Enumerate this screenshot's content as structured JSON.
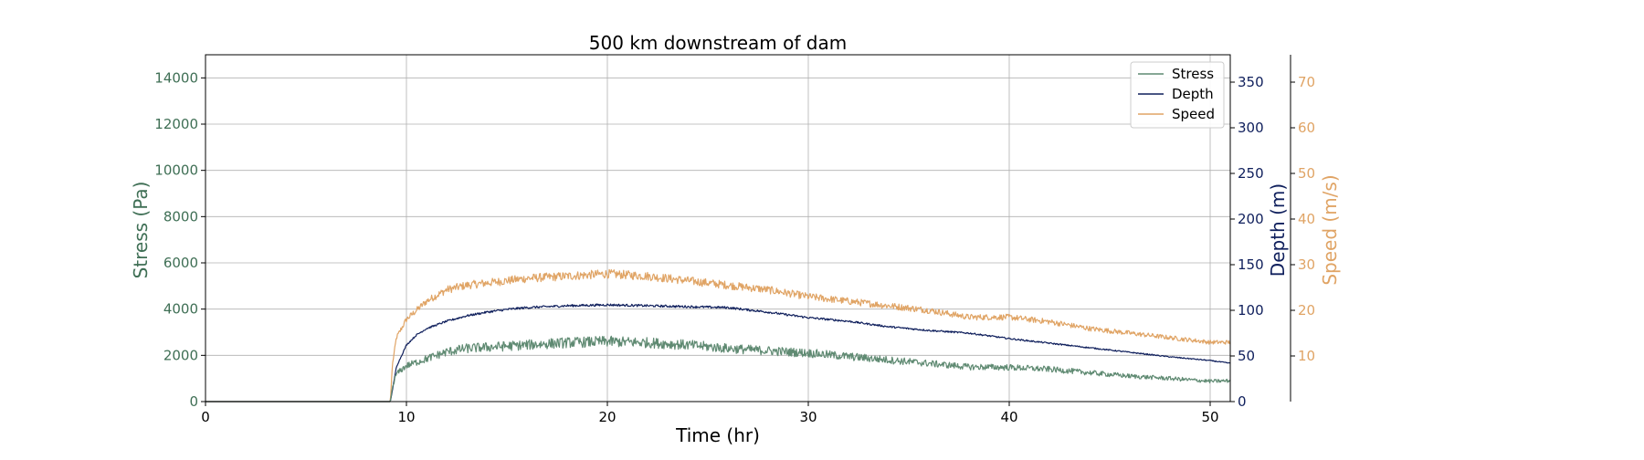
{
  "chart_data": {
    "type": "line",
    "title": "500 km downstream of dam",
    "xlabel": "Time (hr)",
    "xlim": [
      0,
      51
    ],
    "xticks": [
      0,
      10,
      20,
      30,
      40,
      50
    ],
    "grid": true,
    "legend_placement": "top-right",
    "colors": {
      "stress": "#5f8a72",
      "depth": "#0f1f5c",
      "speed": "#e0a465"
    },
    "axes": {
      "left": {
        "label": "Stress (Pa)",
        "ylim": [
          0,
          15000
        ],
        "ticks": [
          0,
          2000,
          4000,
          6000,
          8000,
          10000,
          12000,
          14000
        ],
        "color": "#3f6f55"
      },
      "right1": {
        "label": "Depth (m)",
        "ylim": [
          0,
          380
        ],
        "ticks": [
          0,
          50,
          100,
          150,
          200,
          250,
          300,
          350
        ],
        "color": "#0f1f5c"
      },
      "right2": {
        "label": "Speed (m/s)",
        "ylim": [
          0,
          76
        ],
        "ticks": [
          10,
          20,
          30,
          40,
          50,
          60,
          70
        ],
        "color": "#e0a465"
      }
    },
    "series": [
      {
        "name": "Stress",
        "axis": "left",
        "noise": 0.09,
        "x": [
          0,
          9.2,
          9.3,
          9.5,
          10,
          10.5,
          11,
          12,
          13,
          14,
          15,
          16,
          18,
          20,
          22,
          24,
          26,
          28,
          30,
          32,
          34,
          36,
          38,
          40,
          42,
          44,
          46,
          48,
          50,
          51
        ],
        "y": [
          0,
          0,
          600,
          1200,
          1550,
          1700,
          1850,
          2150,
          2300,
          2350,
          2400,
          2450,
          2550,
          2600,
          2550,
          2450,
          2300,
          2200,
          2100,
          1950,
          1800,
          1650,
          1500,
          1480,
          1400,
          1250,
          1100,
          1000,
          880,
          900
        ]
      },
      {
        "name": "Depth",
        "axis": "right1",
        "noise": 0.012,
        "x": [
          0,
          9.2,
          9.3,
          9.5,
          10,
          10.5,
          11,
          12,
          13,
          14,
          15,
          16,
          18,
          20,
          22,
          24,
          26,
          28,
          30,
          32,
          34,
          36,
          38,
          40,
          42,
          44,
          46,
          48,
          50,
          51
        ],
        "y": [
          0,
          0,
          12,
          38,
          62,
          73,
          80,
          88,
          94,
          98,
          101,
          103,
          105,
          106,
          105,
          104,
          103,
          98,
          92,
          88,
          82,
          78,
          75,
          69,
          64,
          59,
          54,
          49,
          45,
          42
        ]
      },
      {
        "name": "Speed",
        "axis": "right2",
        "noise": 0.035,
        "x": [
          0,
          9.2,
          9.3,
          9.5,
          10,
          10.5,
          11,
          12,
          13,
          14,
          15,
          16,
          18,
          20,
          22,
          24,
          26,
          28,
          30,
          32,
          34,
          36,
          38,
          40,
          42,
          44,
          46,
          48,
          50,
          51
        ],
        "y": [
          0,
          0,
          8,
          14,
          18,
          20,
          22,
          24.5,
          25.5,
          26,
          26.5,
          27,
          27.5,
          28,
          27.5,
          26.5,
          25.5,
          24.5,
          23,
          22,
          21,
          20,
          18.5,
          18.5,
          17.5,
          16,
          15,
          14,
          13,
          13
        ]
      }
    ]
  }
}
